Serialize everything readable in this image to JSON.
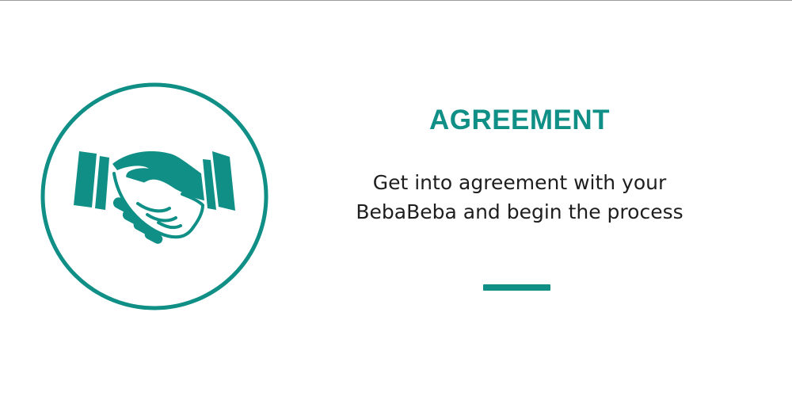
{
  "card": {
    "icon": "handshake-icon",
    "title": "AGREEMENT",
    "description_lines": [
      "Get into agreement with your",
      "BebaBeba and begin the process"
    ]
  },
  "colors": {
    "accent": "#0f8f86",
    "text": "#1e1e1e",
    "background": "#ffffff"
  }
}
